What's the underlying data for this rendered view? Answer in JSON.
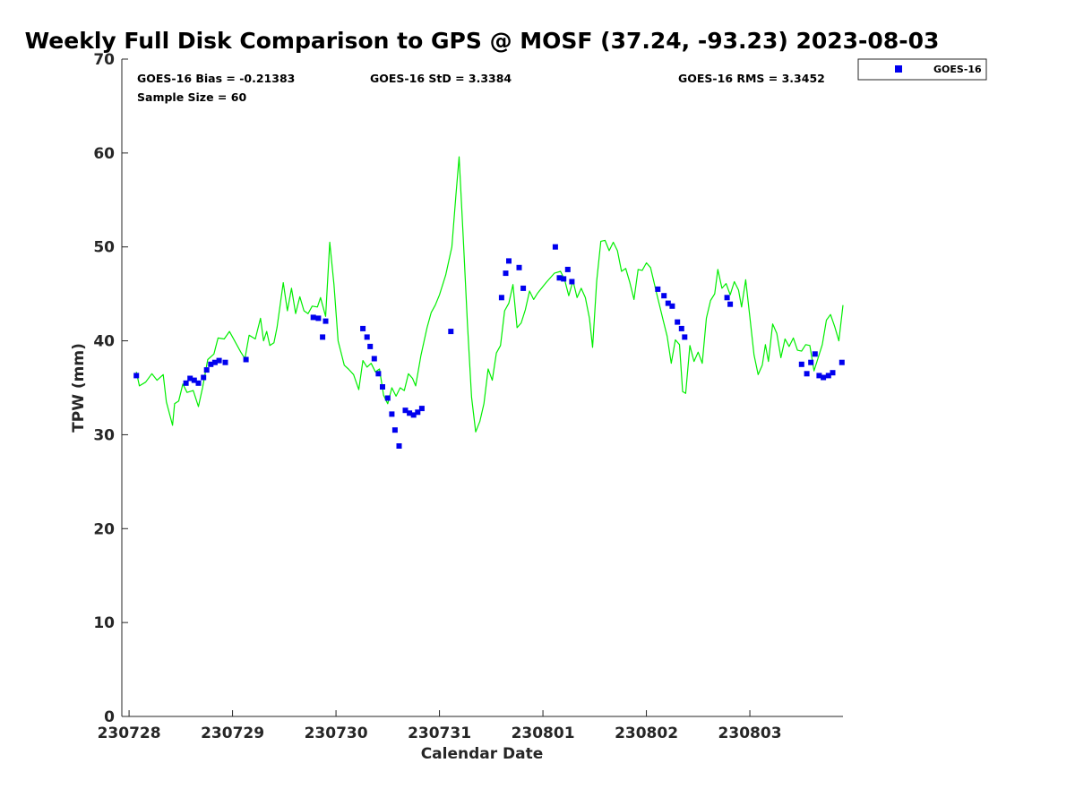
{
  "chart_data": {
    "type": "scatter",
    "title": "Weekly Full Disk Comparison to GPS @ MOSF (37.24, -93.23) 2023-08-03",
    "xlabel": "Calendar Date",
    "ylabel": "TPW (mm)",
    "xlim": [
      -0.07,
      6.9
    ],
    "ylim": [
      0,
      70
    ],
    "yticks": [
      0,
      10,
      20,
      30,
      40,
      50,
      60,
      70
    ],
    "xtick_positions": [
      0,
      1,
      2,
      3,
      4,
      5,
      6
    ],
    "xtick_labels": [
      "230728",
      "230729",
      "230730",
      "230731",
      "230801",
      "230802",
      "230803"
    ],
    "stats": {
      "bias": "GOES-16 Bias = -0.21383",
      "std": "GOES-16 StD = 3.3384",
      "rms": "GOES-16 RMS = 3.3452",
      "sample": "Sample Size = 60"
    },
    "legend": {
      "label": "GOES-16",
      "location": "top-right outside"
    },
    "colors": {
      "goes": "#0000ee",
      "gps": "#00ee00",
      "axis": "#262626"
    },
    "series": [
      {
        "name": "GPS",
        "kind": "line",
        "color": "#00ee00",
        "points": [
          [
            0.07,
            36.7
          ],
          [
            0.1,
            35.2
          ],
          [
            0.16,
            35.6
          ],
          [
            0.22,
            36.5
          ],
          [
            0.27,
            35.8
          ],
          [
            0.33,
            36.4
          ],
          [
            0.36,
            33.5
          ],
          [
            0.42,
            31.0
          ],
          [
            0.44,
            33.3
          ],
          [
            0.48,
            33.6
          ],
          [
            0.52,
            35.4
          ],
          [
            0.56,
            34.5
          ],
          [
            0.62,
            34.7
          ],
          [
            0.67,
            33.0
          ],
          [
            0.71,
            35.0
          ],
          [
            0.76,
            38.0
          ],
          [
            0.82,
            38.6
          ],
          [
            0.86,
            40.3
          ],
          [
            0.92,
            40.2
          ],
          [
            0.97,
            41.0
          ],
          [
            1.02,
            40.0
          ],
          [
            1.08,
            38.8
          ],
          [
            1.12,
            38.1
          ],
          [
            1.16,
            40.6
          ],
          [
            1.22,
            40.2
          ],
          [
            1.27,
            42.4
          ],
          [
            1.3,
            40.0
          ],
          [
            1.33,
            41.0
          ],
          [
            1.36,
            39.5
          ],
          [
            1.4,
            39.8
          ],
          [
            1.43,
            41.4
          ],
          [
            1.49,
            46.2
          ],
          [
            1.53,
            43.2
          ],
          [
            1.57,
            45.6
          ],
          [
            1.61,
            42.9
          ],
          [
            1.65,
            44.7
          ],
          [
            1.69,
            43.2
          ],
          [
            1.73,
            42.9
          ],
          [
            1.77,
            43.7
          ],
          [
            1.82,
            43.6
          ],
          [
            1.85,
            44.6
          ],
          [
            1.9,
            42.6
          ],
          [
            1.94,
            50.5
          ],
          [
            1.98,
            46.0
          ],
          [
            2.02,
            40.0
          ],
          [
            2.08,
            37.4
          ],
          [
            2.12,
            37.0
          ],
          [
            2.17,
            36.4
          ],
          [
            2.22,
            34.8
          ],
          [
            2.26,
            37.9
          ],
          [
            2.3,
            37.2
          ],
          [
            2.34,
            37.6
          ],
          [
            2.38,
            36.7
          ],
          [
            2.42,
            37.0
          ],
          [
            2.46,
            34.2
          ],
          [
            2.5,
            33.3
          ],
          [
            2.54,
            35.0
          ],
          [
            2.58,
            34.1
          ],
          [
            2.62,
            35.0
          ],
          [
            2.66,
            34.7
          ],
          [
            2.7,
            36.5
          ],
          [
            2.74,
            36.0
          ],
          [
            2.77,
            35.2
          ],
          [
            2.82,
            38.4
          ],
          [
            2.88,
            41.4
          ],
          [
            2.92,
            43.0
          ],
          [
            2.96,
            43.8
          ],
          [
            3.0,
            44.9
          ],
          [
            3.06,
            47.0
          ],
          [
            3.12,
            50.0
          ],
          [
            3.16,
            55.6
          ],
          [
            3.19,
            59.6
          ],
          [
            3.23,
            51.0
          ],
          [
            3.27,
            41.8
          ],
          [
            3.31,
            34.0
          ],
          [
            3.35,
            30.3
          ],
          [
            3.39,
            31.4
          ],
          [
            3.43,
            33.3
          ],
          [
            3.47,
            37.0
          ],
          [
            3.51,
            35.8
          ],
          [
            3.55,
            38.7
          ],
          [
            3.59,
            39.5
          ],
          [
            3.63,
            43.2
          ],
          [
            3.67,
            44.0
          ],
          [
            3.71,
            46.0
          ],
          [
            3.75,
            41.4
          ],
          [
            3.79,
            41.9
          ],
          [
            3.83,
            43.3
          ],
          [
            3.87,
            45.3
          ],
          [
            3.91,
            44.4
          ],
          [
            3.95,
            45.1
          ],
          [
            4.03,
            46.2
          ],
          [
            4.11,
            47.2
          ],
          [
            4.17,
            47.4
          ],
          [
            4.21,
            46.5
          ],
          [
            4.25,
            44.8
          ],
          [
            4.29,
            46.4
          ],
          [
            4.33,
            44.6
          ],
          [
            4.37,
            45.6
          ],
          [
            4.41,
            44.6
          ],
          [
            4.45,
            42.4
          ],
          [
            4.48,
            39.3
          ],
          [
            4.52,
            46.4
          ],
          [
            4.56,
            50.6
          ],
          [
            4.6,
            50.7
          ],
          [
            4.64,
            49.6
          ],
          [
            4.68,
            50.5
          ],
          [
            4.72,
            49.6
          ],
          [
            4.76,
            47.4
          ],
          [
            4.8,
            47.7
          ],
          [
            4.84,
            46.2
          ],
          [
            4.88,
            44.4
          ],
          [
            4.92,
            47.6
          ],
          [
            4.96,
            47.5
          ],
          [
            5.0,
            48.3
          ],
          [
            5.04,
            47.8
          ],
          [
            5.1,
            45.0
          ],
          [
            5.16,
            42.3
          ],
          [
            5.2,
            40.5
          ],
          [
            5.24,
            37.6
          ],
          [
            5.28,
            40.1
          ],
          [
            5.32,
            39.6
          ],
          [
            5.35,
            34.6
          ],
          [
            5.38,
            34.4
          ],
          [
            5.42,
            39.5
          ],
          [
            5.46,
            37.8
          ],
          [
            5.5,
            38.8
          ],
          [
            5.54,
            37.6
          ],
          [
            5.58,
            42.4
          ],
          [
            5.62,
            44.3
          ],
          [
            5.66,
            45.0
          ],
          [
            5.69,
            47.6
          ],
          [
            5.73,
            45.6
          ],
          [
            5.77,
            46.1
          ],
          [
            5.81,
            44.9
          ],
          [
            5.85,
            46.3
          ],
          [
            5.89,
            45.4
          ],
          [
            5.92,
            43.6
          ],
          [
            5.96,
            46.5
          ],
          [
            6.0,
            42.5
          ],
          [
            6.04,
            38.5
          ],
          [
            6.08,
            36.4
          ],
          [
            6.12,
            37.4
          ],
          [
            6.15,
            39.6
          ],
          [
            6.18,
            37.8
          ],
          [
            6.22,
            41.8
          ],
          [
            6.26,
            40.8
          ],
          [
            6.3,
            38.2
          ],
          [
            6.34,
            40.2
          ],
          [
            6.38,
            39.4
          ],
          [
            6.42,
            40.3
          ],
          [
            6.46,
            39.0
          ],
          [
            6.5,
            38.9
          ],
          [
            6.54,
            39.6
          ],
          [
            6.58,
            39.5
          ],
          [
            6.62,
            36.8
          ],
          [
            6.66,
            38.2
          ],
          [
            6.7,
            39.6
          ],
          [
            6.74,
            42.2
          ],
          [
            6.78,
            42.8
          ],
          [
            6.82,
            41.5
          ],
          [
            6.86,
            40.0
          ],
          [
            6.9,
            43.8
          ]
        ]
      },
      {
        "name": "GOES-16",
        "kind": "scatter",
        "color": "#0000ee",
        "points": [
          [
            0.07,
            36.3
          ],
          [
            0.55,
            35.5
          ],
          [
            0.59,
            36.0
          ],
          [
            0.63,
            35.8
          ],
          [
            0.67,
            35.5
          ],
          [
            0.72,
            36.1
          ],
          [
            0.75,
            36.9
          ],
          [
            0.79,
            37.5
          ],
          [
            0.83,
            37.7
          ],
          [
            0.87,
            37.9
          ],
          [
            0.93,
            37.7
          ],
          [
            1.13,
            38.0
          ],
          [
            1.78,
            42.5
          ],
          [
            1.83,
            42.4
          ],
          [
            1.87,
            40.4
          ],
          [
            1.9,
            42.1
          ],
          [
            2.26,
            41.3
          ],
          [
            2.3,
            40.4
          ],
          [
            2.33,
            39.4
          ],
          [
            2.37,
            38.1
          ],
          [
            2.41,
            36.5
          ],
          [
            2.45,
            35.1
          ],
          [
            2.5,
            33.9
          ],
          [
            2.54,
            32.2
          ],
          [
            2.57,
            30.5
          ],
          [
            2.61,
            28.8
          ],
          [
            2.67,
            32.6
          ],
          [
            2.71,
            32.3
          ],
          [
            2.75,
            32.1
          ],
          [
            2.79,
            32.4
          ],
          [
            2.83,
            32.8
          ],
          [
            3.11,
            41.0
          ],
          [
            3.6,
            44.6
          ],
          [
            3.64,
            47.2
          ],
          [
            3.67,
            48.5
          ],
          [
            3.77,
            47.8
          ],
          [
            3.81,
            45.6
          ],
          [
            4.12,
            50.0
          ],
          [
            4.16,
            46.7
          ],
          [
            4.2,
            46.6
          ],
          [
            4.24,
            47.6
          ],
          [
            4.28,
            46.3
          ],
          [
            5.11,
            45.5
          ],
          [
            5.17,
            44.8
          ],
          [
            5.21,
            44.0
          ],
          [
            5.25,
            43.7
          ],
          [
            5.3,
            42.0
          ],
          [
            5.34,
            41.3
          ],
          [
            5.37,
            40.4
          ],
          [
            5.78,
            44.6
          ],
          [
            5.81,
            43.9
          ],
          [
            6.5,
            37.5
          ],
          [
            6.55,
            36.5
          ],
          [
            6.59,
            37.7
          ],
          [
            6.63,
            38.6
          ],
          [
            6.67,
            36.3
          ],
          [
            6.71,
            36.1
          ],
          [
            6.76,
            36.3
          ],
          [
            6.8,
            36.6
          ],
          [
            6.89,
            37.7
          ]
        ]
      }
    ]
  }
}
